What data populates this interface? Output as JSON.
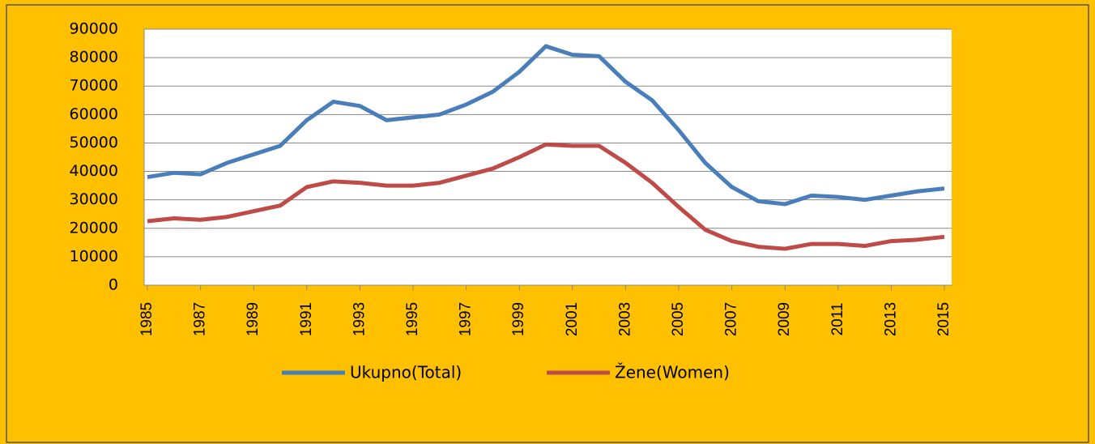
{
  "chart_data": {
    "type": "line",
    "x": [
      1985,
      1986,
      1987,
      1988,
      1989,
      1990,
      1991,
      1992,
      1993,
      1994,
      1995,
      1996,
      1997,
      1998,
      1999,
      2000,
      2001,
      2002,
      2003,
      2004,
      2005,
      2006,
      2007,
      2008,
      2009,
      2010,
      2011,
      2012,
      2013,
      2014,
      2015
    ],
    "series": [
      {
        "name": "Ukupno(Total)",
        "color": "#4a7ebb",
        "values": [
          38000,
          39500,
          39000,
          43000,
          46000,
          49000,
          58000,
          64500,
          63000,
          58000,
          59000,
          60000,
          63500,
          68000,
          75000,
          84000,
          81000,
          80500,
          71500,
          65000,
          54500,
          43000,
          34500,
          29500,
          28500,
          31500,
          31000,
          30000,
          31500,
          33000,
          34000
        ]
      },
      {
        "name": "Žene(Women)",
        "color": "#be4b48",
        "values": [
          22500,
          23500,
          23000,
          24000,
          26000,
          28000,
          34500,
          36500,
          36000,
          35000,
          35000,
          36000,
          38500,
          41000,
          45000,
          49500,
          49000,
          49000,
          43000,
          36000,
          27500,
          19500,
          15500,
          13500,
          12800,
          14500,
          14500,
          13800,
          15500,
          16000,
          17000
        ]
      }
    ],
    "xlim": [
      1985,
      2015
    ],
    "xticks": [
      1985,
      1987,
      1989,
      1991,
      1993,
      1995,
      1997,
      1999,
      2001,
      2003,
      2005,
      2007,
      2009,
      2011,
      2013,
      2015
    ],
    "ylim": [
      0,
      90000
    ],
    "yticks": [
      0,
      10000,
      20000,
      30000,
      40000,
      50000,
      60000,
      70000,
      80000,
      90000
    ],
    "grid": true
  }
}
